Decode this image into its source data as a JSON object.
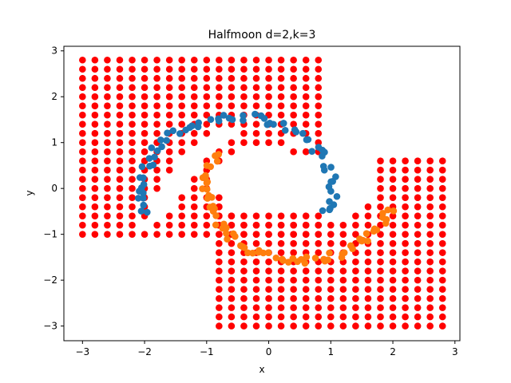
{
  "chart_data": {
    "type": "scatter",
    "title": "Halfmoon d=2,k=3",
    "xlabel": "x",
    "ylabel": "y",
    "xlim": [
      -3.3,
      3.08
    ],
    "ylim": [
      -3.32,
      3.1
    ],
    "xticks": [
      -3,
      -2,
      -1,
      0,
      1,
      2,
      3
    ],
    "xtick_labels": [
      "−3",
      "−2",
      "−1",
      "0",
      "1",
      "2",
      "3"
    ],
    "yticks": [
      -3,
      -2,
      -1,
      0,
      1,
      2,
      3
    ],
    "ytick_labels": [
      "−3",
      "−2",
      "−1",
      "0",
      "1",
      "2",
      "3"
    ],
    "grid": false,
    "legend": "none",
    "series": [
      {
        "role": "grid-left",
        "color": "#ff0000",
        "grid": {
          "x_start": -3.0,
          "x_step": 0.2,
          "x_count": 20,
          "y_start": -1.0,
          "y_step": 0.2,
          "y_count": 20
        },
        "exclude": [
          [
            -0.6,
            -0.4
          ],
          [
            -0.4,
            -0.4
          ],
          [
            -0.2,
            -0.4
          ],
          [
            0.0,
            -0.4
          ],
          [
            0.2,
            -0.4
          ],
          [
            0.4,
            -0.4
          ],
          [
            0.6,
            -0.4
          ],
          [
            0.8,
            -0.4
          ],
          [
            -0.6,
            -0.2
          ],
          [
            -0.4,
            -0.2
          ],
          [
            -0.2,
            -0.2
          ],
          [
            0.0,
            -0.2
          ],
          [
            0.2,
            -0.2
          ],
          [
            0.4,
            -0.2
          ],
          [
            0.6,
            -0.2
          ],
          [
            0.8,
            -0.2
          ],
          [
            -0.8,
            0.0
          ],
          [
            -0.6,
            0.0
          ],
          [
            -0.4,
            0.0
          ],
          [
            -0.2,
            0.0
          ],
          [
            0.0,
            0.0
          ],
          [
            0.2,
            0.0
          ],
          [
            0.4,
            0.0
          ],
          [
            0.6,
            0.0
          ],
          [
            0.8,
            0.0
          ],
          [
            -0.8,
            0.2
          ],
          [
            -0.6,
            0.2
          ],
          [
            -0.4,
            0.2
          ],
          [
            -0.2,
            0.2
          ],
          [
            0.0,
            0.2
          ],
          [
            0.2,
            0.2
          ],
          [
            0.4,
            0.2
          ],
          [
            0.6,
            0.2
          ],
          [
            0.8,
            0.2
          ],
          [
            -0.8,
            0.4
          ],
          [
            -0.6,
            0.4
          ],
          [
            -0.4,
            0.4
          ],
          [
            -0.2,
            0.4
          ],
          [
            0.0,
            0.4
          ],
          [
            0.2,
            0.4
          ],
          [
            0.4,
            0.4
          ],
          [
            0.6,
            0.4
          ],
          [
            0.8,
            0.4
          ],
          [
            -0.6,
            0.6
          ],
          [
            -0.4,
            0.6
          ],
          [
            -0.2,
            0.6
          ],
          [
            0.0,
            0.6
          ],
          [
            0.2,
            0.6
          ],
          [
            0.4,
            0.6
          ],
          [
            0.6,
            0.6
          ],
          [
            0.8,
            0.6
          ],
          [
            -0.4,
            0.8
          ],
          [
            -0.2,
            0.8
          ],
          [
            0.0,
            0.8
          ],
          [
            0.2,
            0.8
          ],
          [
            -2.0,
            -0.8
          ],
          [
            -1.8,
            -0.6
          ],
          [
            -1.8,
            -0.4
          ],
          [
            -1.6,
            -0.4
          ],
          [
            -1.8,
            -0.2
          ],
          [
            -1.6,
            -0.2
          ],
          [
            -1.6,
            0.0
          ],
          [
            -1.4,
            0.0
          ],
          [
            -1.6,
            0.2
          ],
          [
            -1.4,
            0.2
          ],
          [
            -1.4,
            0.4
          ],
          [
            -1.2,
            0.4
          ],
          [
            -1.4,
            0.6
          ],
          [
            -1.2,
            0.6
          ],
          [
            -1.2,
            0.8
          ],
          [
            -1.0,
            0.8
          ],
          [
            -1.0,
            1.0
          ],
          [
            -0.8,
            1.0
          ],
          [
            -0.8,
            1.2
          ],
          [
            -0.6,
            1.2
          ],
          [
            0.4,
            1.0
          ],
          [
            0.6,
            1.0
          ]
        ]
      },
      {
        "role": "grid-right",
        "color": "#ff0000",
        "grid": {
          "x_start": -0.8,
          "x_step": 0.2,
          "x_count": 19,
          "y_start": -3.0,
          "y_step": 0.2,
          "y_count": 19
        },
        "exclude": [
          [
            -0.8,
            0.6
          ],
          [
            -0.6,
            0.6
          ],
          [
            -0.4,
            0.6
          ],
          [
            -0.2,
            0.6
          ],
          [
            0.0,
            0.6
          ],
          [
            0.2,
            0.6
          ],
          [
            0.4,
            0.6
          ],
          [
            0.6,
            0.6
          ],
          [
            0.8,
            0.6
          ],
          [
            1.0,
            0.6
          ],
          [
            1.2,
            0.6
          ],
          [
            -0.8,
            0.4
          ],
          [
            -0.6,
            0.4
          ],
          [
            -0.4,
            0.4
          ],
          [
            -0.2,
            0.4
          ],
          [
            0.0,
            0.4
          ],
          [
            0.2,
            0.4
          ],
          [
            0.4,
            0.4
          ],
          [
            0.6,
            0.4
          ],
          [
            0.8,
            0.4
          ],
          [
            1.0,
            0.4
          ],
          [
            1.2,
            0.4
          ],
          [
            -0.8,
            0.2
          ],
          [
            -0.6,
            0.2
          ],
          [
            -0.4,
            0.2
          ],
          [
            -0.2,
            0.2
          ],
          [
            0.0,
            0.2
          ],
          [
            0.2,
            0.2
          ],
          [
            0.4,
            0.2
          ],
          [
            0.6,
            0.2
          ],
          [
            0.8,
            0.2
          ],
          [
            1.0,
            0.2
          ],
          [
            1.2,
            0.2
          ],
          [
            -0.8,
            0.0
          ],
          [
            -0.6,
            0.0
          ],
          [
            -0.4,
            0.0
          ],
          [
            -0.2,
            0.0
          ],
          [
            0.0,
            0.0
          ],
          [
            0.2,
            0.0
          ],
          [
            0.4,
            0.0
          ],
          [
            0.6,
            0.0
          ],
          [
            0.8,
            0.0
          ],
          [
            1.0,
            0.0
          ],
          [
            1.2,
            0.0
          ],
          [
            -0.8,
            -0.2
          ],
          [
            -0.6,
            -0.2
          ],
          [
            -0.4,
            -0.2
          ],
          [
            -0.2,
            -0.2
          ],
          [
            0.0,
            -0.2
          ],
          [
            0.2,
            -0.2
          ],
          [
            0.4,
            -0.2
          ],
          [
            0.6,
            -0.2
          ],
          [
            0.8,
            -0.2
          ],
          [
            1.0,
            -0.2
          ],
          [
            1.2,
            -0.2
          ],
          [
            -0.6,
            -0.4
          ],
          [
            -0.4,
            -0.4
          ],
          [
            -0.2,
            -0.4
          ],
          [
            0.0,
            -0.4
          ],
          [
            0.2,
            -0.4
          ],
          [
            0.4,
            -0.4
          ],
          [
            0.6,
            -0.4
          ],
          [
            0.8,
            -0.4
          ],
          [
            1.0,
            -0.4
          ],
          [
            1.2,
            -0.4
          ],
          [
            -0.4,
            -0.6
          ],
          [
            -0.2,
            -0.6
          ],
          [
            0.0,
            -0.6
          ],
          [
            0.2,
            -0.6
          ],
          [
            0.4,
            -0.6
          ],
          [
            0.6,
            -0.6
          ],
          [
            0.8,
            -0.6
          ],
          [
            1.0,
            -0.6
          ],
          [
            -0.6,
            0.4
          ],
          [
            1.4,
            0.6
          ],
          [
            1.6,
            0.6
          ],
          [
            1.4,
            0.4
          ],
          [
            1.6,
            0.4
          ],
          [
            1.4,
            0.2
          ],
          [
            1.6,
            0.2
          ],
          [
            1.4,
            0.0
          ],
          [
            1.6,
            0.0
          ],
          [
            1.4,
            -0.2
          ],
          [
            1.6,
            -0.2
          ],
          [
            1.2,
            -0.4
          ],
          [
            1.4,
            -0.4
          ],
          [
            1.0,
            -0.6
          ],
          [
            1.2,
            -0.6
          ]
        ]
      },
      {
        "role": "moon-upper",
        "color": "#1f77b4",
        "arc": {
          "cx": -0.5,
          "cy": 0.0,
          "r": 1.55,
          "start_deg": 200,
          "end_deg": -20,
          "count": 70,
          "jitter": 0.09
        }
      },
      {
        "role": "moon-lower",
        "color": "#ff7f0e",
        "arc": {
          "cx": 0.5,
          "cy": 0.0,
          "r": 1.5,
          "start_deg": 150,
          "end_deg": 345,
          "count": 70,
          "jitter": 0.09,
          "yshift": -0.05
        }
      }
    ]
  }
}
